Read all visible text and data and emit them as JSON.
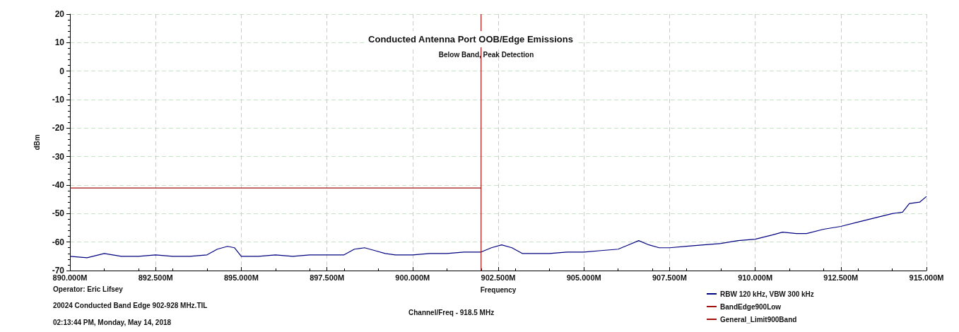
{
  "chart_data": {
    "type": "line",
    "title": "Conducted Antenna Port OOB/Edge Emissions",
    "subtitle": "Below Band, Peak Detection",
    "xlabel": "Frequency",
    "ylabel": "dBm",
    "xlim": [
      890,
      915
    ],
    "xticks": [
      {
        "value": 890,
        "label": "890.000M"
      },
      {
        "value": 892.5,
        "label": "892.500M"
      },
      {
        "value": 895,
        "label": "895.000M"
      },
      {
        "value": 897.5,
        "label": "897.500M"
      },
      {
        "value": 900,
        "label": "900.000M"
      },
      {
        "value": 902.5,
        "label": "902.500M"
      },
      {
        "value": 905,
        "label": "905.000M"
      },
      {
        "value": 907.5,
        "label": "907.500M"
      },
      {
        "value": 910,
        "label": "910.000M"
      },
      {
        "value": 912.5,
        "label": "912.500M"
      },
      {
        "value": 915,
        "label": "915.000M"
      }
    ],
    "ylim": [
      -70,
      20
    ],
    "yticks": [
      -70,
      -60,
      -50,
      -40,
      -30,
      -20,
      -10,
      0,
      10,
      20
    ],
    "grid": true,
    "legend": "bottom right",
    "marker": "none",
    "line_style": "solid",
    "series": [
      {
        "name": "RBW 120 kHz, VBW 300 kHz",
        "color": "#000080",
        "x": [
          890,
          890.5,
          891,
          891.5,
          892,
          892.5,
          893,
          893.5,
          894,
          894.3,
          894.6,
          894.8,
          895,
          895.5,
          896,
          896.5,
          897,
          897.5,
          898,
          898.3,
          898.6,
          898.9,
          899.2,
          899.5,
          900,
          900.5,
          901,
          901.5,
          902,
          902.3,
          902.6,
          902.9,
          903.2,
          903.5,
          904,
          904.5,
          905,
          905.5,
          906,
          906.3,
          906.6,
          906.9,
          907.2,
          907.5,
          908,
          908.5,
          909,
          909.5,
          910,
          910.5,
          910.8,
          911.2,
          911.5,
          912,
          912.5,
          913,
          913.5,
          914,
          914.3,
          914.5,
          914.8,
          915
        ],
        "values": [
          -65,
          -65.5,
          -64,
          -65,
          -65,
          -64.5,
          -65,
          -65,
          -64.5,
          -62.5,
          -61.5,
          -62,
          -65,
          -65,
          -64.5,
          -65,
          -64.5,
          -64.5,
          -64.5,
          -62.5,
          -62,
          -63,
          -64,
          -64.5,
          -64.5,
          -64,
          -64,
          -63.5,
          -63.5,
          -62,
          -61,
          -62,
          -64,
          -64,
          -64,
          -63.5,
          -63.5,
          -63,
          -62.5,
          -61,
          -59.5,
          -61,
          -62,
          -62,
          -61.5,
          -61,
          -60.5,
          -59.5,
          -59,
          -57.5,
          -56.5,
          -57,
          -57,
          -55.5,
          -54.5,
          -53,
          -51.5,
          -50,
          -49.5,
          -46.5,
          -46,
          -44
        ]
      },
      {
        "name": "BandEdge900Low",
        "color": "#a01010",
        "x": [
          902,
          902
        ],
        "values": [
          -70,
          20
        ]
      },
      {
        "name": "General_Limit900Band",
        "color": "#a01010",
        "x": [
          890,
          902
        ],
        "values": [
          -41,
          -41
        ]
      }
    ],
    "annotations": [
      "Operator: Eric Lifsey",
      "20024 Conducted Band Edge 902-928 MHz.TIL",
      "02:13:44 PM, Monday, May 14, 2018",
      "Channel/Freq - 918.5 MHz"
    ]
  }
}
